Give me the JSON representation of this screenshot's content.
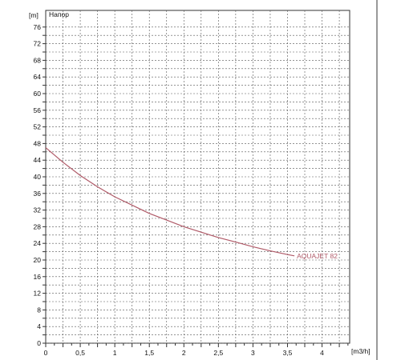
{
  "chart_data": {
    "type": "line",
    "title": "Напор",
    "y_unit_label": "[m]",
    "x_unit_label": "[m3/h]",
    "xlim": [
      0,
      4.4
    ],
    "ylim": [
      0,
      80
    ],
    "x_ticks": [
      "0",
      "0,5",
      "1",
      "1,5",
      "2",
      "2,5",
      "3",
      "3,5",
      "4"
    ],
    "x_tick_values": [
      0,
      0.5,
      1,
      1.5,
      2,
      2.5,
      3,
      3.5,
      4
    ],
    "y_ticks": [
      "0",
      "2",
      "4",
      "6",
      "8",
      "10",
      "12",
      "14",
      "16",
      "18",
      "20",
      "22",
      "24",
      "26",
      "28",
      "30",
      "32",
      "34",
      "36",
      "38",
      "40",
      "42",
      "44",
      "46",
      "48",
      "50",
      "52",
      "54",
      "56",
      "58",
      "60",
      "62",
      "64",
      "66",
      "68",
      "70",
      "72",
      "74",
      "76"
    ],
    "y_labeled": [
      "0",
      "4",
      "8",
      "12",
      "16",
      "20",
      "24",
      "28",
      "32",
      "36",
      "40",
      "44",
      "48",
      "52",
      "56",
      "60",
      "64",
      "68",
      "72",
      "76"
    ],
    "y_tick_values": [
      0,
      2,
      4,
      6,
      8,
      10,
      12,
      14,
      16,
      18,
      20,
      22,
      24,
      26,
      28,
      30,
      32,
      34,
      36,
      38,
      40,
      42,
      44,
      46,
      48,
      50,
      52,
      54,
      56,
      58,
      60,
      62,
      64,
      66,
      68,
      70,
      72,
      74,
      76
    ],
    "grid": true,
    "series": [
      {
        "name": "AQUAJET 82",
        "color": "#b05a68",
        "x": [
          0,
          0.25,
          0.5,
          0.75,
          1.0,
          1.25,
          1.5,
          1.75,
          2.0,
          2.25,
          2.5,
          2.75,
          3.0,
          3.25,
          3.5,
          3.6
        ],
        "y": [
          47,
          43.5,
          40.3,
          37.6,
          35.2,
          33.2,
          31.2,
          29.6,
          28.0,
          26.7,
          25.4,
          24.3,
          23.2,
          22.2,
          21.3,
          21.0
        ]
      }
    ]
  }
}
